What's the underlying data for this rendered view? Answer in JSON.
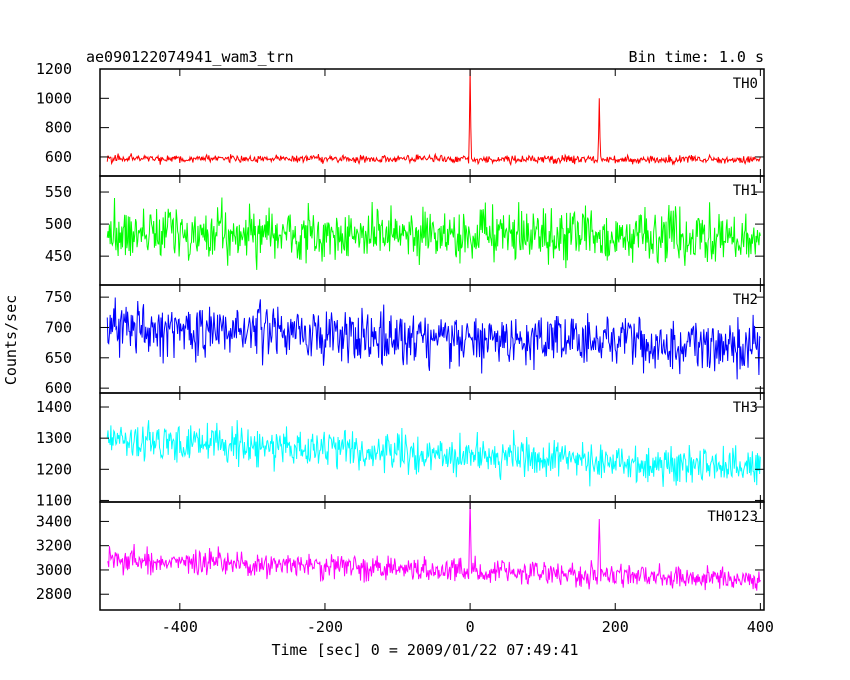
{
  "chart_data": {
    "type": "line",
    "title": "ae090122074941_wam3_trn",
    "bin_time_label": "Bin time: 1.0 s",
    "xlabel": "Time [sec] 0 = 2009/01/22 07:49:41",
    "ylabel": "Counts/sec",
    "xlim": [
      -510,
      405
    ],
    "x_ticks": [
      -400,
      -200,
      0,
      200,
      400
    ],
    "panels": [
      {
        "name": "TH0",
        "color": "#ff0000",
        "ylim": [
          470,
          1200
        ],
        "y_ticks": [
          600,
          800,
          1000,
          1200
        ],
        "baseline": 590,
        "trend": -10,
        "noise": 20,
        "spikes": [
          {
            "x": 0,
            "peak": 1200
          },
          {
            "x": 178,
            "peak": 1000
          }
        ]
      },
      {
        "name": "TH1",
        "color": "#00ff00",
        "ylim": [
          405,
          575
        ],
        "y_ticks": [
          450,
          500,
          550
        ],
        "baseline": 487,
        "trend": -10,
        "noise": 28,
        "spikes": []
      },
      {
        "name": "TH2",
        "color": "#0000ff",
        "ylim": [
          592,
          770
        ],
        "y_ticks": [
          600,
          650,
          700,
          750
        ],
        "baseline": 700,
        "trend": -32,
        "noise": 30,
        "spikes": []
      },
      {
        "name": "TH3",
        "color": "#00ffff",
        "ylim": [
          1095,
          1445
        ],
        "y_ticks": [
          1100,
          1200,
          1300,
          1400
        ],
        "baseline": 1295,
        "trend": -90,
        "noise": 42,
        "spikes": []
      },
      {
        "name": "TH0123",
        "color": "#ff00ff",
        "ylim": [
          2670,
          3560
        ],
        "y_ticks": [
          2800,
          3000,
          3200,
          3400
        ],
        "baseline": 3080,
        "trend": -160,
        "noise": 70,
        "spikes": [
          {
            "x": 0,
            "peak": 3560
          },
          {
            "x": 178,
            "peak": 3420
          }
        ]
      }
    ]
  }
}
